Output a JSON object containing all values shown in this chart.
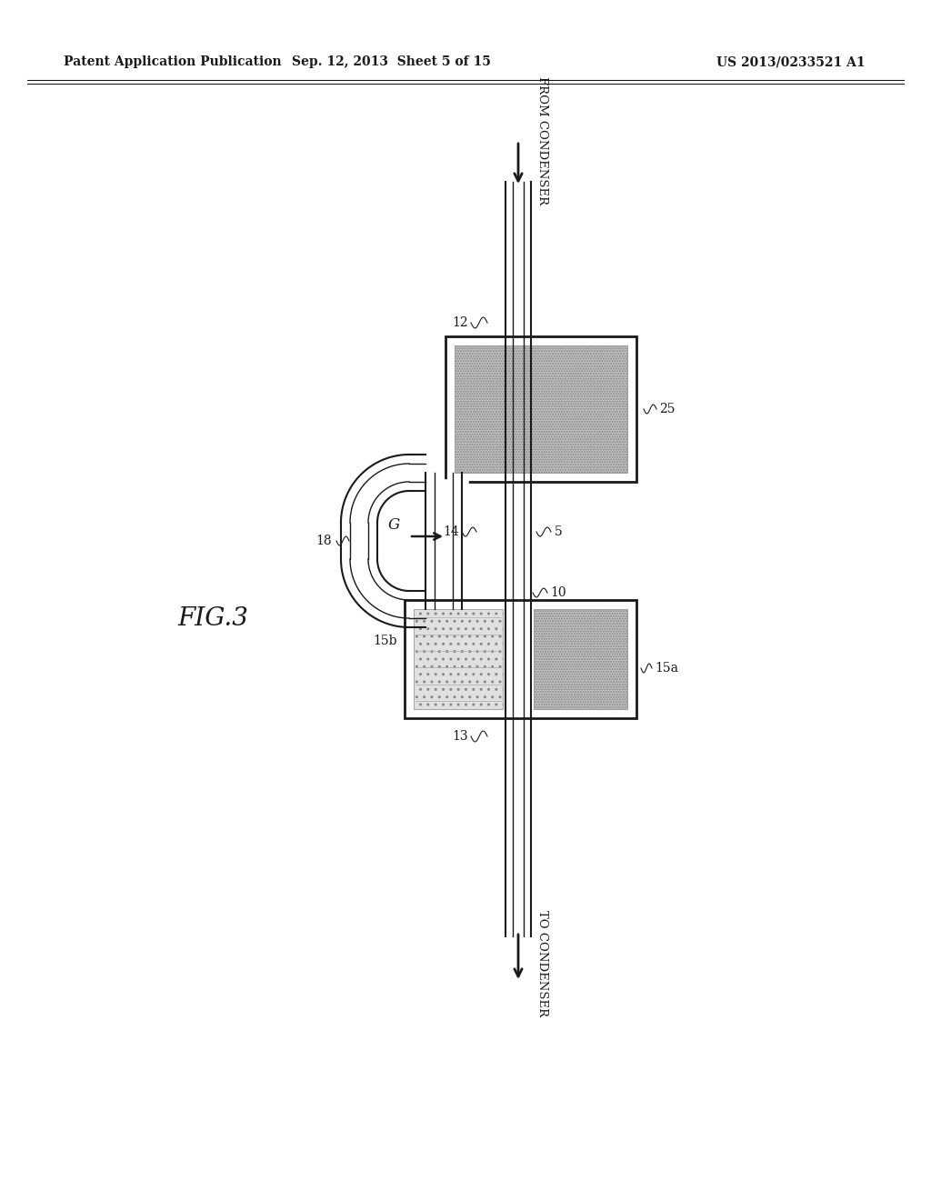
{
  "bg_color": "#ffffff",
  "line_color": "#1a1a1a",
  "header_left": "Patent Application Publication",
  "header_center": "Sep. 12, 2013  Sheet 5 of 15",
  "header_right": "US 2013/0233521 A1",
  "fig_label": "FIG.3",
  "hatch_dots": "......",
  "hatch_dense": "......",
  "fill_gray": "#c8c8c8",
  "fill_light": "#d8d8d8"
}
